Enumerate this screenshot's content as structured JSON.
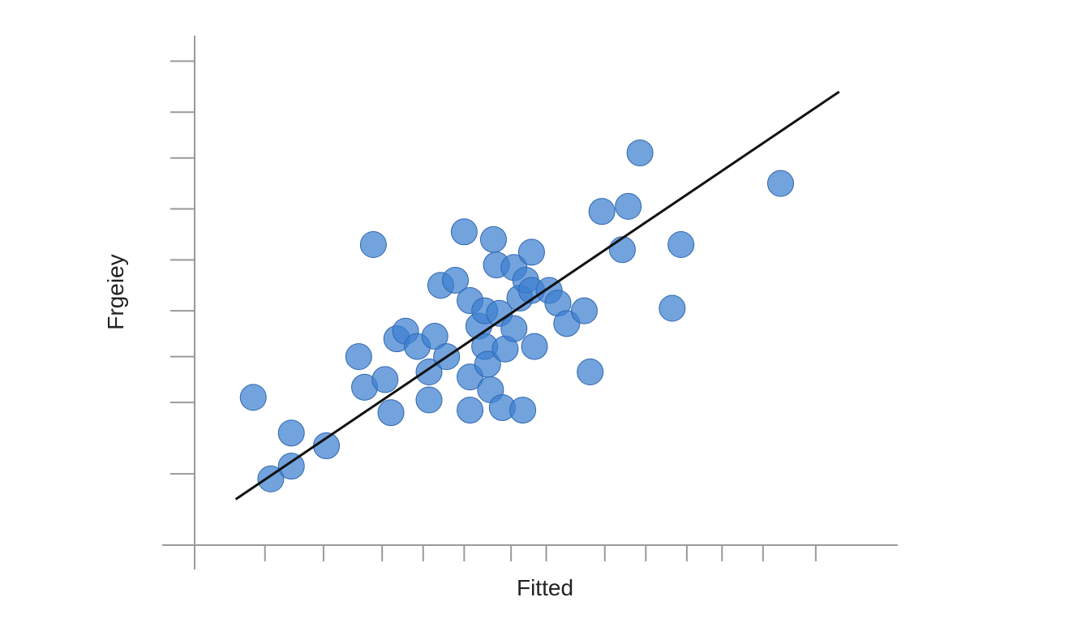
{
  "chart_data": {
    "type": "scatter",
    "xlabel": "Fitted",
    "ylabel": "Frgeiey",
    "xlim": [
      0,
      12
    ],
    "ylim": [
      0,
      10
    ],
    "grid": false,
    "point_color": "#3b7fd0",
    "line_color": "#111111",
    "x_ticks": [
      0,
      1.2,
      2.2,
      3.2,
      3.9,
      4.6,
      5.4,
      6,
      7,
      7.7,
      8.4,
      9,
      9.7,
      10.6
    ],
    "y_ticks": [
      1.4,
      2.8,
      3.7,
      4.6,
      5.6,
      6.6,
      7.6,
      8.5,
      9.5
    ],
    "points": [
      {
        "x": 1.0,
        "y": 2.9
      },
      {
        "x": 1.3,
        "y": 1.3
      },
      {
        "x": 1.65,
        "y": 2.2
      },
      {
        "x": 1.65,
        "y": 1.55
      },
      {
        "x": 2.25,
        "y": 1.95
      },
      {
        "x": 2.8,
        "y": 3.7
      },
      {
        "x": 2.9,
        "y": 3.1
      },
      {
        "x": 3.05,
        "y": 5.9
      },
      {
        "x": 3.25,
        "y": 3.25
      },
      {
        "x": 3.35,
        "y": 2.6
      },
      {
        "x": 3.45,
        "y": 4.05
      },
      {
        "x": 3.6,
        "y": 4.2
      },
      {
        "x": 3.8,
        "y": 3.9
      },
      {
        "x": 4.0,
        "y": 3.4
      },
      {
        "x": 4.0,
        "y": 2.85
      },
      {
        "x": 4.1,
        "y": 4.1
      },
      {
        "x": 4.2,
        "y": 5.1
      },
      {
        "x": 4.3,
        "y": 3.7
      },
      {
        "x": 4.45,
        "y": 5.2
      },
      {
        "x": 4.6,
        "y": 6.15
      },
      {
        "x": 4.7,
        "y": 4.8
      },
      {
        "x": 4.7,
        "y": 3.3
      },
      {
        "x": 4.7,
        "y": 2.65
      },
      {
        "x": 4.85,
        "y": 4.3
      },
      {
        "x": 4.95,
        "y": 4.6
      },
      {
        "x": 4.95,
        "y": 3.9
      },
      {
        "x": 5.0,
        "y": 3.55
      },
      {
        "x": 5.05,
        "y": 3.05
      },
      {
        "x": 5.1,
        "y": 6.0
      },
      {
        "x": 5.15,
        "y": 5.5
      },
      {
        "x": 5.2,
        "y": 4.55
      },
      {
        "x": 5.25,
        "y": 2.7
      },
      {
        "x": 5.3,
        "y": 3.85
      },
      {
        "x": 5.45,
        "y": 5.45
      },
      {
        "x": 5.45,
        "y": 4.25
      },
      {
        "x": 5.55,
        "y": 4.85
      },
      {
        "x": 5.65,
        "y": 5.2
      },
      {
        "x": 5.6,
        "y": 2.65
      },
      {
        "x": 5.75,
        "y": 5.75
      },
      {
        "x": 5.8,
        "y": 3.9
      },
      {
        "x": 5.75,
        "y": 5.0
      },
      {
        "x": 6.05,
        "y": 5.0
      },
      {
        "x": 6.2,
        "y": 4.75
      },
      {
        "x": 6.35,
        "y": 4.35
      },
      {
        "x": 6.65,
        "y": 4.6
      },
      {
        "x": 6.75,
        "y": 3.4
      },
      {
        "x": 6.95,
        "y": 6.55
      },
      {
        "x": 7.3,
        "y": 5.8
      },
      {
        "x": 7.4,
        "y": 6.65
      },
      {
        "x": 7.6,
        "y": 7.7
      },
      {
        "x": 8.15,
        "y": 4.65
      },
      {
        "x": 8.3,
        "y": 5.9
      },
      {
        "x": 10.0,
        "y": 7.1
      }
    ],
    "fit_line": [
      {
        "x": 0.7,
        "y": 0.9
      },
      {
        "x": 11.0,
        "y": 8.9
      }
    ]
  }
}
